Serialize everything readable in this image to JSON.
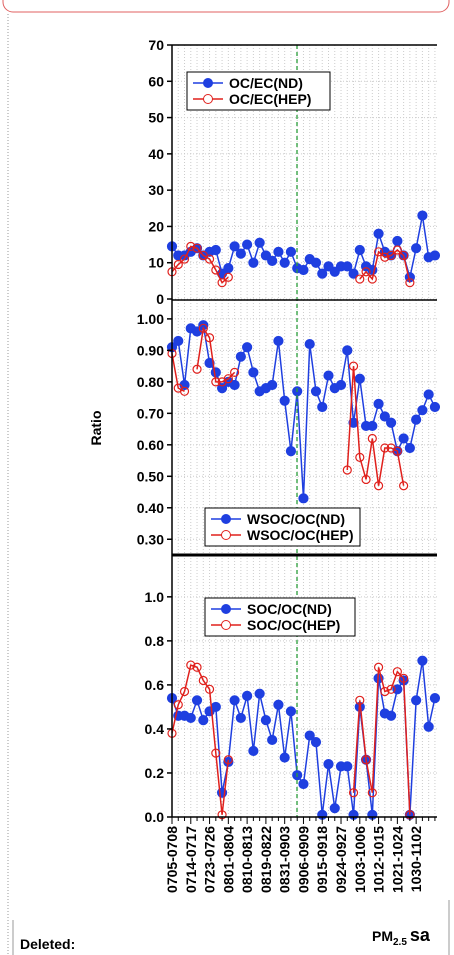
{
  "y_label": "Ratio",
  "x_label": {
    "main": "PM",
    "sub": "2.5",
    "end": "sa"
  },
  "note": "Deleted:",
  "chart_data": [
    {
      "type": "line",
      "categories": [
        "0705-0708",
        null,
        null,
        "0714-0717",
        null,
        null,
        "0723-0726",
        null,
        null,
        "0801-0804",
        null,
        null,
        "0810-0813",
        null,
        null,
        "0819-0822",
        null,
        null,
        "0831-0903",
        null,
        null,
        "0906-0909",
        null,
        null,
        "0915-0918",
        null,
        null,
        "0924-0927",
        null,
        null,
        "1003-1006",
        null,
        null,
        "1012-1015",
        null,
        null,
        "1021-1024",
        null,
        null,
        "1030-1102",
        null,
        null,
        null
      ],
      "series": [
        {
          "name": "OC/EC(ND)",
          "color": "#1f3fe0",
          "marker": "filled",
          "values": [
            14.5,
            12,
            12,
            13,
            14,
            12,
            13,
            13.5,
            7,
            8.5,
            14.5,
            12.5,
            15,
            10,
            15.5,
            12,
            10.5,
            13,
            10,
            13,
            8.5,
            8,
            11,
            10,
            7,
            9,
            7.5,
            9,
            9,
            7,
            13.5,
            9,
            8,
            18,
            13,
            12,
            16,
            12,
            6,
            14,
            23,
            11.5,
            12
          ]
        },
        {
          "name": "OC/EC(HEP)",
          "color": "#e0201c",
          "marker": "open",
          "values": [
            7.5,
            9.5,
            11,
            14.5,
            14,
            12,
            11,
            8,
            4.5,
            6,
            null,
            null,
            null,
            null,
            null,
            null,
            null,
            null,
            null,
            null,
            null,
            null,
            null,
            null,
            null,
            null,
            null,
            null,
            null,
            null,
            5.5,
            7.5,
            5.5,
            13,
            11.5,
            12,
            13.5,
            12,
            4.5,
            null,
            null,
            null,
            null
          ]
        }
      ],
      "ylim": [
        0,
        70
      ],
      "yticks": [
        0,
        10,
        20,
        30,
        40,
        50,
        60,
        70
      ],
      "grid": true
    },
    {
      "type": "line",
      "series": [
        {
          "name": "WSOC/OC(ND)",
          "color": "#1f3fe0",
          "marker": "filled",
          "values": [
            0.91,
            0.93,
            0.79,
            0.97,
            0.96,
            0.98,
            0.86,
            0.83,
            0.78,
            0.8,
            0.79,
            0.88,
            0.91,
            0.83,
            0.77,
            0.78,
            0.79,
            0.93,
            0.74,
            0.58,
            0.77,
            0.43,
            0.92,
            0.77,
            0.72,
            0.82,
            0.78,
            0.79,
            0.9,
            0.67,
            0.81,
            0.66,
            0.66,
            0.73,
            0.69,
            0.67,
            0.58,
            0.62,
            0.59,
            0.68,
            0.71,
            0.76,
            0.72
          ]
        },
        {
          "name": "WSOC/OC(HEP)",
          "color": "#e0201c",
          "marker": "open",
          "values": [
            0.89,
            0.78,
            0.77,
            null,
            0.84,
            0.97,
            0.94,
            0.8,
            0.8,
            0.81,
            0.83,
            null,
            null,
            null,
            null,
            null,
            null,
            null,
            null,
            null,
            null,
            null,
            null,
            null,
            null,
            null,
            null,
            null,
            0.52,
            0.85,
            0.56,
            0.49,
            0.62,
            0.47,
            0.59,
            0.59,
            0.58,
            0.47,
            null,
            null,
            null,
            null,
            null
          ]
        }
      ],
      "ylim": [
        0.25,
        1.06
      ],
      "yticks": [
        {
          "value": 0.3,
          "label": "0.30"
        },
        {
          "value": 0.4,
          "label": "0.40"
        },
        {
          "value": 0.5,
          "label": "0.50"
        },
        {
          "value": 0.6,
          "label": "0.60"
        },
        {
          "value": 0.7,
          "label": "0.70"
        },
        {
          "value": 0.8,
          "label": "0.80"
        },
        {
          "value": 0.9,
          "label": "0.90"
        },
        {
          "value": 1.0,
          "label": "1.00"
        }
      ],
      "grid": true
    },
    {
      "type": "line",
      "series": [
        {
          "name": "SOC/OC(ND)",
          "color": "#1f3fe0",
          "marker": "filled",
          "values": [
            0.54,
            0.46,
            0.46,
            0.45,
            0.53,
            0.44,
            0.48,
            0.5,
            0.11,
            0.25,
            0.53,
            0.45,
            0.55,
            0.3,
            0.56,
            0.44,
            0.35,
            0.51,
            0.27,
            0.48,
            0.19,
            0.15,
            0.37,
            0.34,
            0.01,
            0.24,
            0.04,
            0.23,
            0.23,
            0.01,
            0.5,
            0.26,
            0.01,
            0.63,
            0.47,
            0.46,
            0.58,
            0.62,
            0.01,
            0.53,
            0.71,
            0.41,
            0.54
          ]
        },
        {
          "name": "SOC/OC(HEP)",
          "color": "#e0201c",
          "marker": "open",
          "values": [
            0.38,
            0.51,
            0.57,
            0.69,
            0.68,
            0.62,
            0.58,
            0.29,
            0.01,
            0.26,
            null,
            null,
            null,
            null,
            null,
            null,
            null,
            null,
            null,
            null,
            null,
            null,
            null,
            null,
            null,
            null,
            null,
            null,
            null,
            0.11,
            0.53,
            0.26,
            0.11,
            0.68,
            0.57,
            0.58,
            0.66,
            0.63,
            0.01,
            null,
            null,
            null,
            null
          ]
        }
      ],
      "ylim": [
        0,
        1.19
      ],
      "yticks": [
        {
          "value": 0,
          "label": "0.0"
        },
        {
          "value": 0.2,
          "label": "0.2"
        },
        {
          "value": 0.4,
          "label": "0.4"
        },
        {
          "value": 0.6,
          "label": "0.6"
        },
        {
          "value": 0.8,
          "label": "0.8"
        },
        {
          "value": 1.0,
          "label": "1.0"
        }
      ],
      "grid": true
    }
  ]
}
